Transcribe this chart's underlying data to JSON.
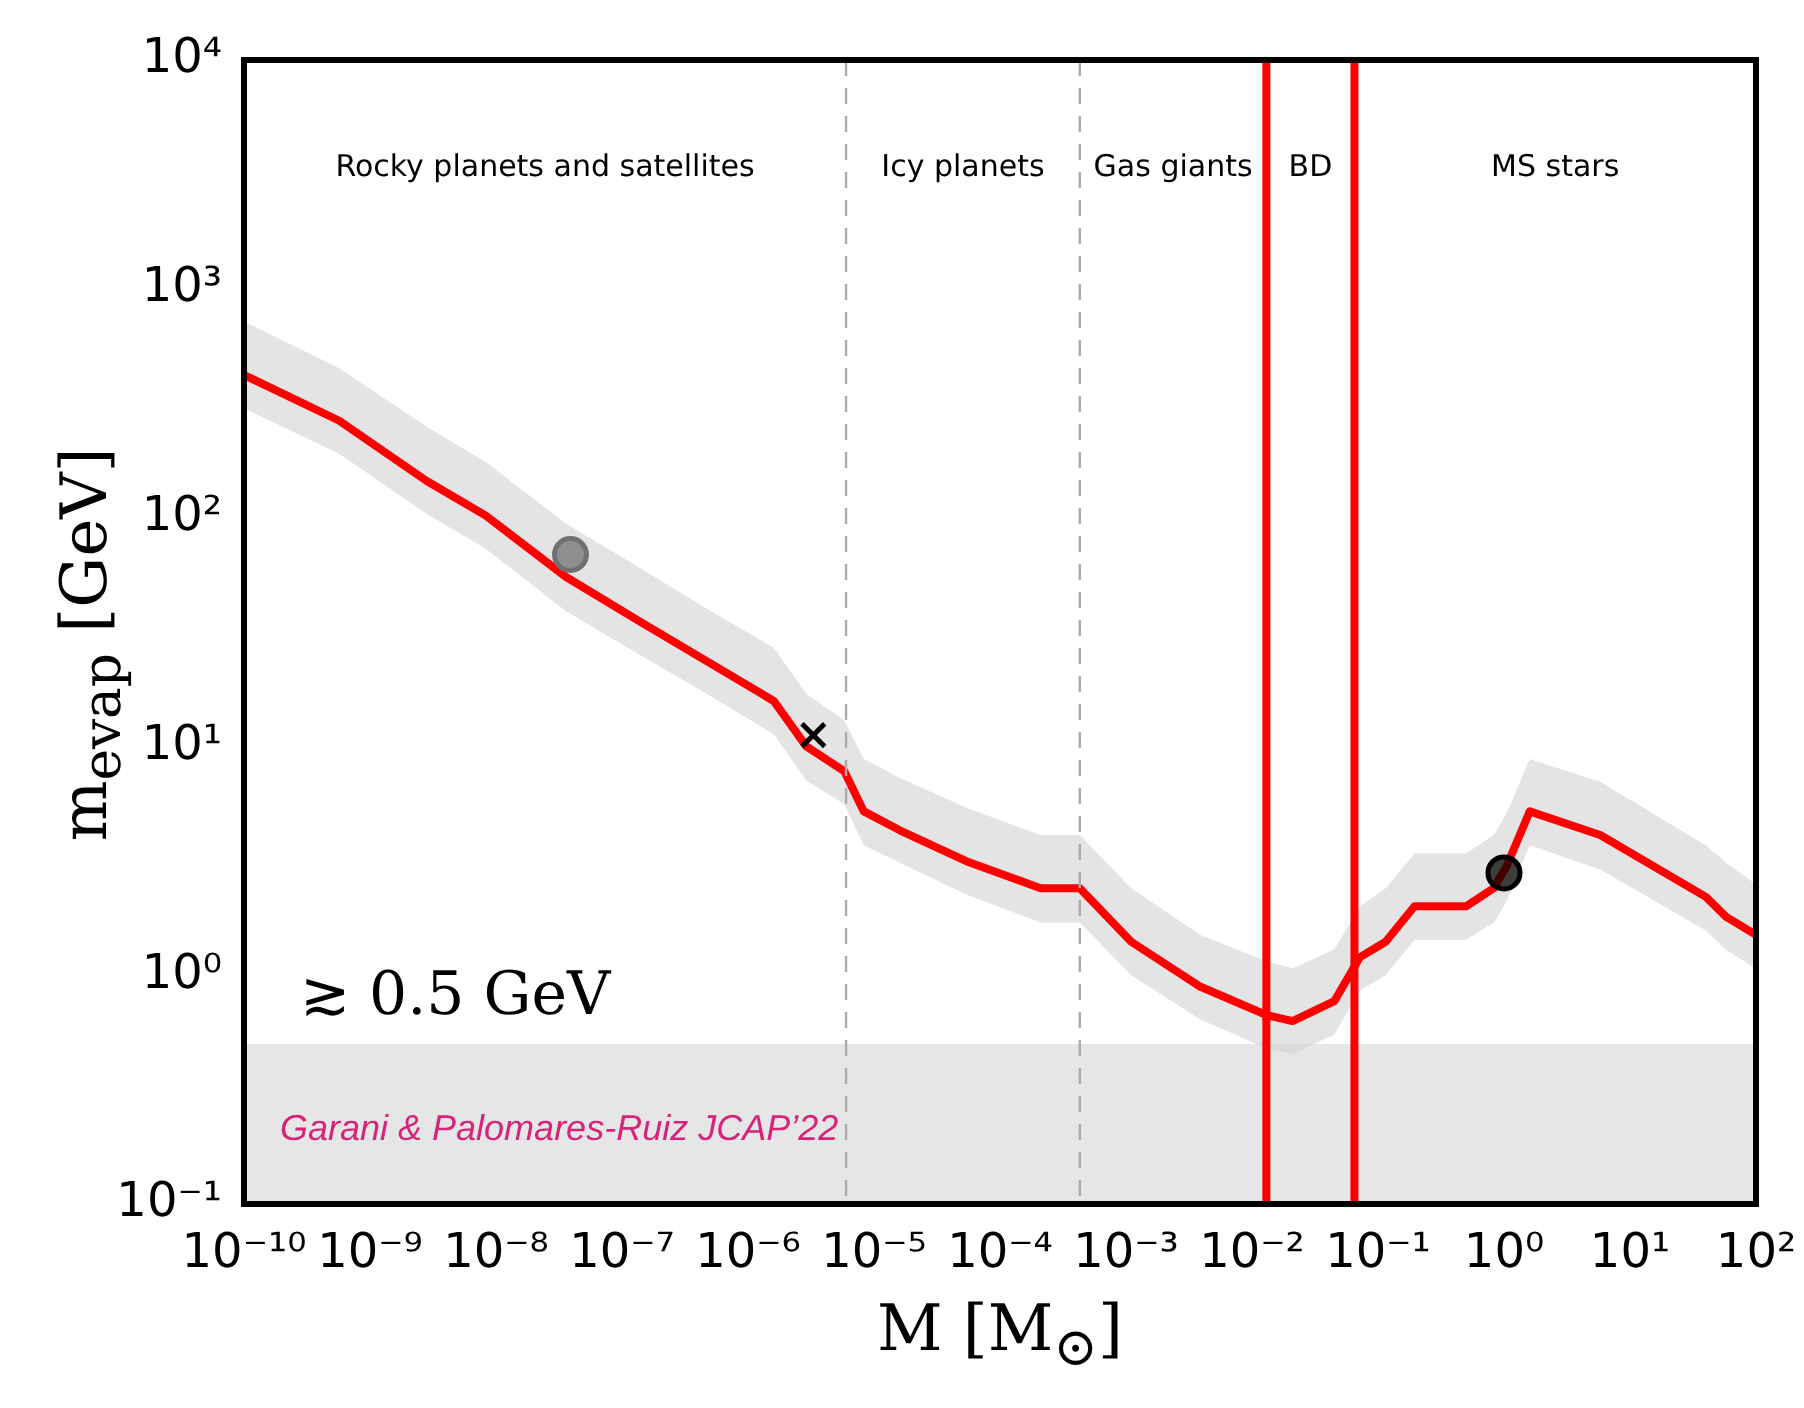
{
  "chart_data": {
    "type": "line",
    "xlabel": "M [M$_{⊙}$]",
    "ylabel": "m$_{evap}$ [GeV]",
    "log": "xy",
    "grid": false,
    "legend": false,
    "xlim": [
      1e-10,
      100
    ],
    "ylim": [
      0.1,
      10000
    ],
    "xticks": [
      {
        "value": 1e-10,
        "label": "10⁻¹⁰"
      },
      {
        "value": 1e-09,
        "label": "10⁻⁹"
      },
      {
        "value": 1e-08,
        "label": "10⁻⁸"
      },
      {
        "value": 1e-07,
        "label": "10⁻⁷"
      },
      {
        "value": 1e-06,
        "label": "10⁻⁶"
      },
      {
        "value": 1e-05,
        "label": "10⁻⁵"
      },
      {
        "value": 0.0001,
        "label": "10⁻⁴"
      },
      {
        "value": 0.001,
        "label": "10⁻³"
      },
      {
        "value": 0.01,
        "label": "10⁻²"
      },
      {
        "value": 0.1,
        "label": "10⁻¹"
      },
      {
        "value": 1,
        "label": "10⁰"
      },
      {
        "value": 10,
        "label": "10¹"
      },
      {
        "value": 100,
        "label": "10²"
      }
    ],
    "yticks": [
      {
        "value": 0.1,
        "label": "10⁻¹"
      },
      {
        "value": 1,
        "label": "10⁰"
      },
      {
        "value": 10,
        "label": "10¹"
      },
      {
        "value": 100,
        "label": "10²"
      },
      {
        "value": 1000,
        "label": "10³"
      },
      {
        "value": 10000,
        "label": "10⁴"
      }
    ],
    "series": [
      {
        "color": "#ff0000",
        "x": [
          1e-10,
          5.7e-10,
          2.8e-09,
          8.3e-09,
          3.6e-08,
          1.4e-07,
          4.7e-07,
          1.6e-06,
          2.9e-06,
          5.8e-06,
          8.3e-06,
          1.6e-05,
          5.4e-05,
          0.00021,
          0.00043,
          0.0011,
          0.0039,
          0.013,
          0.021,
          0.045,
          0.072,
          0.115,
          0.195,
          0.5,
          0.83,
          1.05,
          1.6,
          5.8,
          40,
          58,
          100
        ],
        "values": [
          420,
          265,
          145,
          102,
          55,
          35,
          23.6,
          15.8,
          10,
          7.8,
          5.2,
          4.3,
          3.15,
          2.4,
          2.4,
          1.4,
          0.89,
          0.67,
          0.63,
          0.77,
          1.2,
          1.4,
          2.0,
          2.0,
          2.4,
          3.0,
          5.2,
          4.1,
          2.2,
          1.8,
          1.5
        ],
        "upper": [
          720,
          450,
          250,
          175,
          94,
          60,
          40,
          27,
          17,
          13,
          8.8,
          7.3,
          5.4,
          4.1,
          4.1,
          2.4,
          1.5,
          1.15,
          1.07,
          1.3,
          2.0,
          2.4,
          3.4,
          3.4,
          4.1,
          5.1,
          8.8,
          7.0,
          3.7,
          3.1,
          2.5
        ],
        "lower": [
          300,
          190,
          104,
          73,
          39,
          25,
          17,
          11.3,
          7.1,
          5.6,
          3.7,
          3.1,
          2.25,
          1.7,
          1.7,
          1.0,
          0.64,
          0.48,
          0.45,
          0.55,
          0.86,
          1.0,
          1.43,
          1.43,
          1.7,
          2.1,
          3.7,
          2.9,
          1.57,
          1.29,
          1.07
        ]
      },
      {
        "type": "scatter",
        "color": "#707070",
        "marker": "circle",
        "x": [
          3.9e-08
        ],
        "values": [
          69
        ]
      },
      {
        "type": "scatter",
        "color": "#000000",
        "marker": "cross",
        "x": [
          3.3e-06
        ],
        "values": [
          11.2
        ]
      },
      {
        "type": "scatter",
        "color": "#000000",
        "marker": "circle",
        "x": [
          1.0
        ],
        "values": [
          2.8
        ]
      }
    ],
    "ref_lines": [
      {
        "axis": "x",
        "value": 6e-06,
        "color": "#aaaaaa",
        "line_style": "dashed"
      },
      {
        "axis": "x",
        "value": 0.00043,
        "color": "#aaaaaa",
        "line_style": "dashed"
      },
      {
        "axis": "x",
        "value": 0.013,
        "color": "#ff0000",
        "line_style": "solid"
      },
      {
        "axis": "x",
        "value": 0.065,
        "color": "#ff0000",
        "line_style": "solid"
      }
    ],
    "bands": [
      {
        "axis": "y",
        "from": 0.1,
        "to": 0.5,
        "color": "#e6e6e6",
        "label": "≳ 0.5 GeV"
      }
    ],
    "annotations": [
      "Rocky planets and satellites",
      "Icy planets",
      "Gas giants",
      "BD",
      "MS stars",
      "Garani & Palomares-Ruiz JCAP’22"
    ]
  }
}
